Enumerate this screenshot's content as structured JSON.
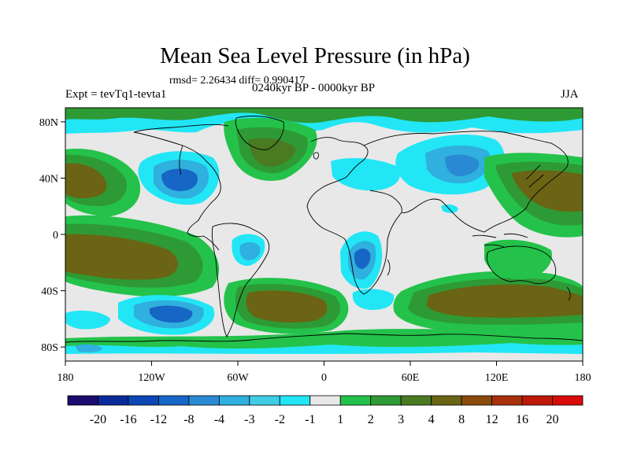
{
  "title": "Mean Sea Level Pressure (in hPa)",
  "stats": "rmsd= 2.26434 diff= 0.990417",
  "experiment": "Expt = tevTq1-tevta1",
  "period": "0240kyr BP - 0000kyr BP",
  "season": "JJA",
  "axes": {
    "lat_labels": [
      "80N",
      "40N",
      "0",
      "40S",
      "80S"
    ],
    "lon_labels": [
      "180",
      "120W",
      "60W",
      "0",
      "60E",
      "120E",
      "180"
    ]
  },
  "colorbar": {
    "labels": [
      "-20",
      "-16",
      "-12",
      "-8",
      "-4",
      "-3",
      "-2",
      "-1",
      "1",
      "2",
      "3",
      "4",
      "8",
      "12",
      "16",
      "20"
    ],
    "colors": [
      "#1c0a6e",
      "#0a2a9a",
      "#0c47b4",
      "#1666c6",
      "#2a89d3",
      "#2fb0de",
      "#3fcde6",
      "#22e6f5",
      "#e8e8e8",
      "#24c24a",
      "#2e9a35",
      "#4a7a22",
      "#6a6414",
      "#8a4a0c",
      "#a8300a",
      "#c01808",
      "#d80a0a"
    ]
  },
  "palette": {
    "neutral": "#e8e8e8",
    "pos1": "#24c24a",
    "pos2": "#2e9a35",
    "pos3": "#4a7a22",
    "pos4": "#6a6414",
    "neg1": "#22e6f5",
    "neg2": "#3fcde6",
    "neg3": "#2fb0de",
    "neg4": "#2a89d3",
    "neg5": "#1666c6"
  }
}
